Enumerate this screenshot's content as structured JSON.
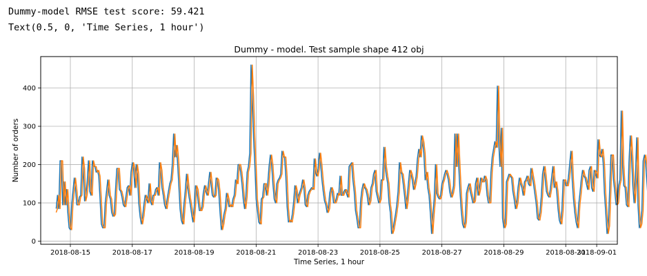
{
  "output_lines": [
    "Dummy-model RMSE test score: 59.421",
    "Text(0.5, 0, 'Time Series, 1 hour')"
  ],
  "chart_data": {
    "type": "line",
    "title": "Dummy - model. Test sample shape 412 obj",
    "xlabel": "Time Series, 1 hour",
    "ylabel": "Number of orders",
    "grid": true,
    "xlim": [
      "2018-08-14 01:00",
      "2018-09-01 16:00"
    ],
    "ylim": [
      -8,
      482
    ],
    "yticks": [
      0,
      100,
      200,
      300,
      400
    ],
    "xticks": [
      "2018-08-15",
      "2018-08-17",
      "2018-08-19",
      "2018-08-21",
      "2018-08-23",
      "2018-08-25",
      "2018-08-27",
      "2018-08-29",
      "2018-08-31",
      "2018-09-01"
    ],
    "x_start": "2018-08-14 13:00",
    "x_step_hours": 1,
    "series": [
      {
        "color": "#1f77b4",
        "values": [
          85,
          120,
          85,
          210,
          210,
          95,
          155,
          95,
          135,
          75,
          35,
          30,
          95,
          130,
          165,
          135,
          95,
          95,
          115,
          120,
          220,
          190,
          105,
          120,
          155,
          210,
          130,
          120,
          210,
          195,
          195,
          180,
          185,
          170,
          110,
          45,
          35,
          35,
          100,
          130,
          160,
          120,
          110,
          75,
          65,
          70,
          135,
          190,
          190,
          135,
          130,
          115,
          95,
          90,
          115,
          140,
          145,
          120,
          180,
          205,
          190,
          140,
          200,
          175,
          100,
          65,
          45,
          65,
          95,
          120,
          110,
          100,
          150,
          105,
          95,
          120,
          120,
          135,
          140,
          120,
          205,
          185,
          140,
          120,
          95,
          85,
          110,
          130,
          150,
          160,
          200,
          280,
          220,
          250,
          210,
          150,
          85,
          55,
          45,
          95,
          130,
          175,
          140,
          115,
          95,
          70,
          50,
          90,
          145,
          135,
          105,
          80,
          80,
          90,
          125,
          145,
          130,
          120,
          150,
          180,
          150,
          120,
          115,
          120,
          165,
          160,
          130,
          75,
          30,
          45,
          70,
          85,
          125,
          110,
          90,
          95,
          90,
          110,
          120,
          160,
          150,
          200,
          200,
          180,
          150,
          110,
          85,
          115,
          180,
          195,
          230,
          460,
          380,
          270,
          200,
          110,
          80,
          50,
          45,
          110,
          115,
          150,
          150,
          120,
          150,
          195,
          225,
          200,
          150,
          110,
          100,
          150,
          160,
          165,
          175,
          235,
          220,
          220,
          170,
          90,
          50,
          55,
          50,
          70,
          100,
          145,
          130,
          100,
          120,
          130,
          140,
          160,
          140,
          95,
          90,
          120,
          130,
          135,
          140,
          135,
          215,
          180,
          170,
          190,
          230,
          200,
          160,
          130,
          105,
          95,
          75,
          85,
          125,
          140,
          130,
          100,
          100,
          110,
          125,
          120,
          170,
          120,
          120,
          130,
          135,
          125,
          115,
          195,
          200,
          205,
          160,
          130,
          80,
          60,
          35,
          35,
          105,
          135,
          150,
          140,
          135,
          120,
          95,
          105,
          140,
          150,
          175,
          185,
          130,
          115,
          100,
          110,
          160,
          160,
          245,
          195,
          170,
          150,
          100,
          75,
          20,
          30,
          50,
          70,
          95,
          130,
          205,
          180,
          175,
          150,
          120,
          85,
          110,
          150,
          185,
          175,
          160,
          135,
          150,
          170,
          215,
          240,
          220,
          275,
          260,
          230,
          160,
          180,
          140,
          120,
          75,
          20,
          70,
          110,
          200,
          125,
          115,
          110,
          120,
          150,
          160,
          175,
          185,
          175,
          160,
          130,
          115,
          125,
          145,
          280,
          195,
          280,
          200,
          130,
          80,
          45,
          35,
          50,
          125,
          140,
          150,
          130,
          115,
          100,
          105,
          150,
          165,
          120,
          135,
          165,
          155,
          155,
          170,
          160,
          120,
          100,
          100,
          180,
          220,
          240,
          260,
          245,
          405,
          260,
          195,
          295,
          60,
          35,
          45,
          155,
          165,
          175,
          170,
          165,
          130,
          110,
          85,
          100,
          140,
          165,
          150,
          140,
          120,
          155,
          160,
          170,
          150,
          145,
          190,
          170,
          150,
          125,
          100,
          60,
          55,
          75,
          115,
          175,
          195,
          165,
          130,
          120,
          115,
          135,
          165,
          195,
          140,
          155,
          130,
          85,
          55,
          45,
          80,
          160,
          160,
          145,
          145,
          165,
          200,
          235,
          160,
          110,
          75,
          50,
          35,
          95,
          125,
          160,
          185,
          170,
          165,
          150,
          135,
          185,
          195,
          140,
          130,
          185,
          180,
          165,
          265,
          225,
          220,
          240,
          205,
          125,
          75,
          20,
          40,
          130,
          225,
          225,
          160,
          130,
          95,
          100,
          145,
          160,
          340,
          200,
          145,
          140,
          95,
          90,
          205,
          275,
          220,
          145,
          100,
          165,
          270,
          95,
          35,
          45,
          80,
          210,
          225,
          200,
          150,
          100,
          150,
          150,
          160,
          145,
          115,
          175,
          215,
          210,
          200,
          140,
          160,
          165,
          225
        ]
      },
      {
        "color": "#ff7f0e",
        "values": [
          75,
          85,
          120,
          85,
          210,
          210,
          95,
          155,
          95,
          135,
          75,
          35,
          30,
          95,
          130,
          165,
          135,
          95,
          95,
          115,
          120,
          220,
          190,
          105,
          120,
          155,
          210,
          130,
          120,
          210,
          195,
          195,
          180,
          185,
          170,
          110,
          45,
          35,
          35,
          100,
          130,
          160,
          120,
          110,
          75,
          65,
          70,
          135,
          190,
          190,
          135,
          130,
          115,
          95,
          90,
          115,
          140,
          145,
          120,
          180,
          205,
          190,
          140,
          200,
          175,
          100,
          65,
          45,
          65,
          95,
          120,
          110,
          100,
          150,
          105,
          95,
          120,
          120,
          135,
          140,
          120,
          205,
          185,
          140,
          120,
          95,
          85,
          110,
          130,
          150,
          160,
          200,
          280,
          220,
          250,
          210,
          150,
          85,
          55,
          45,
          95,
          130,
          175,
          140,
          115,
          95,
          70,
          50,
          90,
          145,
          135,
          105,
          80,
          80,
          90,
          125,
          145,
          130,
          120,
          150,
          180,
          150,
          120,
          115,
          120,
          165,
          160,
          130,
          75,
          30,
          45,
          70,
          85,
          125,
          110,
          90,
          95,
          90,
          110,
          120,
          160,
          150,
          200,
          200,
          180,
          150,
          110,
          85,
          115,
          180,
          195,
          230,
          460,
          380,
          270,
          200,
          110,
          80,
          50,
          45,
          110,
          115,
          150,
          150,
          120,
          150,
          195,
          225,
          200,
          150,
          110,
          100,
          150,
          160,
          165,
          175,
          235,
          220,
          220,
          170,
          90,
          50,
          55,
          50,
          70,
          100,
          145,
          130,
          100,
          120,
          130,
          140,
          160,
          140,
          95,
          90,
          120,
          130,
          135,
          140,
          135,
          215,
          180,
          170,
          190,
          230,
          200,
          160,
          130,
          105,
          95,
          75,
          85,
          125,
          140,
          130,
          100,
          100,
          110,
          125,
          120,
          170,
          120,
          120,
          130,
          135,
          125,
          115,
          195,
          200,
          205,
          160,
          130,
          80,
          60,
          35,
          35,
          105,
          135,
          150,
          140,
          135,
          120,
          95,
          105,
          140,
          150,
          175,
          185,
          130,
          115,
          100,
          110,
          160,
          160,
          245,
          195,
          170,
          150,
          100,
          75,
          20,
          30,
          50,
          70,
          95,
          130,
          205,
          180,
          175,
          150,
          120,
          85,
          110,
          150,
          185,
          175,
          160,
          135,
          150,
          170,
          215,
          240,
          220,
          275,
          260,
          230,
          160,
          180,
          140,
          120,
          75,
          20,
          70,
          110,
          200,
          125,
          115,
          110,
          120,
          150,
          160,
          175,
          185,
          175,
          160,
          130,
          115,
          125,
          145,
          280,
          195,
          280,
          200,
          130,
          80,
          45,
          35,
          50,
          125,
          140,
          150,
          130,
          115,
          100,
          105,
          150,
          165,
          120,
          135,
          165,
          155,
          155,
          170,
          160,
          120,
          100,
          100,
          180,
          220,
          240,
          260,
          245,
          405,
          260,
          195,
          295,
          60,
          35,
          45,
          155,
          165,
          175,
          170,
          165,
          130,
          110,
          85,
          100,
          140,
          165,
          150,
          140,
          120,
          155,
          160,
          170,
          150,
          145,
          190,
          170,
          150,
          125,
          100,
          60,
          55,
          75,
          115,
          175,
          195,
          165,
          130,
          120,
          115,
          135,
          165,
          195,
          140,
          155,
          130,
          85,
          55,
          45,
          80,
          160,
          160,
          145,
          145,
          165,
          200,
          235,
          160,
          110,
          75,
          50,
          35,
          95,
          125,
          160,
          185,
          170,
          165,
          150,
          135,
          185,
          195,
          140,
          130,
          185,
          180,
          165,
          265,
          225,
          220,
          240,
          205,
          125,
          75,
          20,
          40,
          130,
          225,
          225,
          160,
          130,
          95,
          100,
          145,
          160,
          340,
          200,
          145,
          140,
          95,
          90,
          205,
          275,
          220,
          145,
          100,
          165,
          270,
          95,
          35,
          45,
          80,
          210,
          225,
          200,
          150,
          100,
          150,
          150,
          160,
          145,
          115,
          175,
          215,
          210,
          200,
          140,
          160
        ]
      }
    ]
  }
}
